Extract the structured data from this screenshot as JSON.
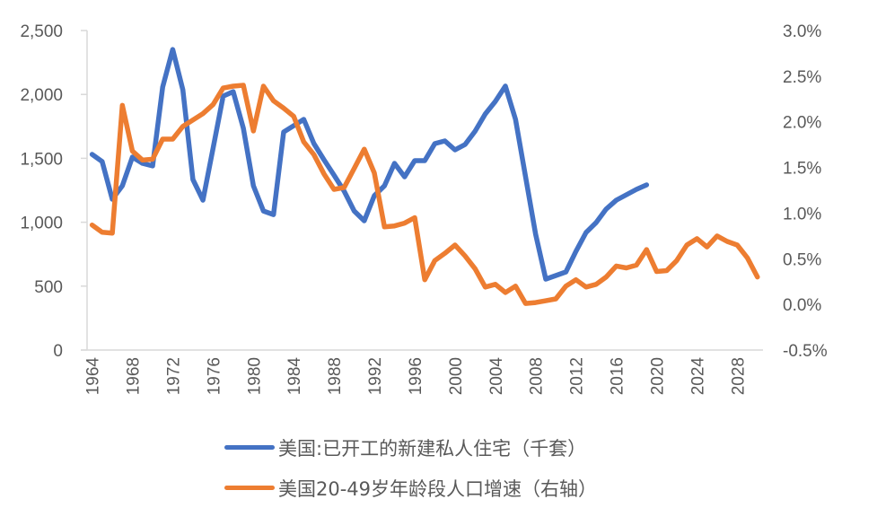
{
  "chart_data": {
    "type": "line",
    "title": "",
    "xlabel": "",
    "ylabel": "",
    "y2label": "",
    "categories": [
      1964,
      1965,
      1966,
      1967,
      1968,
      1969,
      1970,
      1971,
      1972,
      1973,
      1974,
      1975,
      1976,
      1977,
      1978,
      1979,
      1980,
      1981,
      1982,
      1983,
      1984,
      1985,
      1986,
      1987,
      1988,
      1989,
      1990,
      1991,
      1992,
      1993,
      1994,
      1995,
      1996,
      1997,
      1998,
      1999,
      2000,
      2001,
      2002,
      2003,
      2004,
      2005,
      2006,
      2007,
      2008,
      2009,
      2010,
      2011,
      2012,
      2013,
      2014,
      2015,
      2016,
      2017,
      2018,
      2019,
      2020,
      2021,
      2022,
      2023,
      2024,
      2025,
      2026,
      2027,
      2028,
      2029,
      2030
    ],
    "x_tick_labels": [
      "1964",
      "1968",
      "1972",
      "1976",
      "1980",
      "1984",
      "1988",
      "1992",
      "1996",
      "2000",
      "2004",
      "2008",
      "2012",
      "2016",
      "2020",
      "2024",
      "2028"
    ],
    "ylim": [
      0,
      2500
    ],
    "y_tick_labels": [
      "0",
      "500",
      "1,000",
      "1,500",
      "2,000",
      "2,500"
    ],
    "y_ticks": [
      0,
      500,
      1000,
      1500,
      2000,
      2500
    ],
    "y2lim": [
      -0.5,
      3.0
    ],
    "y2_tick_labels": [
      "-0.5%",
      "0.0%",
      "0.5%",
      "1.0%",
      "1.5%",
      "2.0%",
      "2.5%",
      "3.0%"
    ],
    "y2_ticks": [
      -0.5,
      0.0,
      0.5,
      1.0,
      1.5,
      2.0,
      2.5,
      3.0
    ],
    "grid": false,
    "legend_position": "bottom",
    "series": [
      {
        "name": "美国:已开工的新建私人住宅（千套）",
        "axis": "left",
        "color": "#4472C4",
        "values": [
          1531,
          1475,
          1180,
          1285,
          1510,
          1461,
          1440,
          2057,
          2352,
          2036,
          1334,
          1173,
          1580,
          1987,
          2022,
          1735,
          1285,
          1088,
          1060,
          1706,
          1755,
          1805,
          1615,
          1489,
          1369,
          1243,
          1088,
          1011,
          1208,
          1285,
          1461,
          1355,
          1482,
          1482,
          1615,
          1636,
          1566,
          1608,
          1713,
          1847,
          1945,
          2065,
          1805,
          1355,
          906,
          555,
          583,
          611,
          772,
          920,
          997,
          1103,
          1173,
          1215,
          1257,
          1292,
          null,
          null,
          null,
          null,
          null,
          null,
          null,
          null,
          null,
          null,
          null
        ]
      },
      {
        "name": "美国20-49岁年龄段人口增速（右轴）",
        "axis": "right",
        "color": "#ED7D31",
        "values": [
          0.87,
          0.79,
          0.78,
          2.18,
          1.68,
          1.58,
          1.59,
          1.81,
          1.81,
          1.95,
          2.02,
          2.09,
          2.19,
          2.37,
          2.39,
          2.4,
          1.9,
          2.39,
          2.23,
          2.15,
          2.06,
          1.78,
          1.64,
          1.43,
          1.26,
          1.28,
          1.49,
          1.7,
          1.44,
          0.85,
          0.86,
          0.89,
          0.95,
          0.27,
          0.48,
          0.56,
          0.65,
          0.53,
          0.39,
          0.19,
          0.22,
          0.13,
          0.2,
          0.01,
          0.02,
          0.04,
          0.06,
          0.2,
          0.27,
          0.19,
          0.22,
          0.3,
          0.42,
          0.4,
          0.43,
          0.6,
          0.36,
          0.37,
          0.48,
          0.65,
          0.72,
          0.63,
          0.75,
          0.69,
          0.65,
          0.51,
          0.3
        ]
      }
    ]
  },
  "legend": {
    "items": [
      {
        "label": "美国:已开工的新建私人住宅（千套）",
        "color": "#4472C4"
      },
      {
        "label": "美国20-49岁年龄段人口增速（右轴）",
        "color": "#ED7D31"
      }
    ]
  }
}
